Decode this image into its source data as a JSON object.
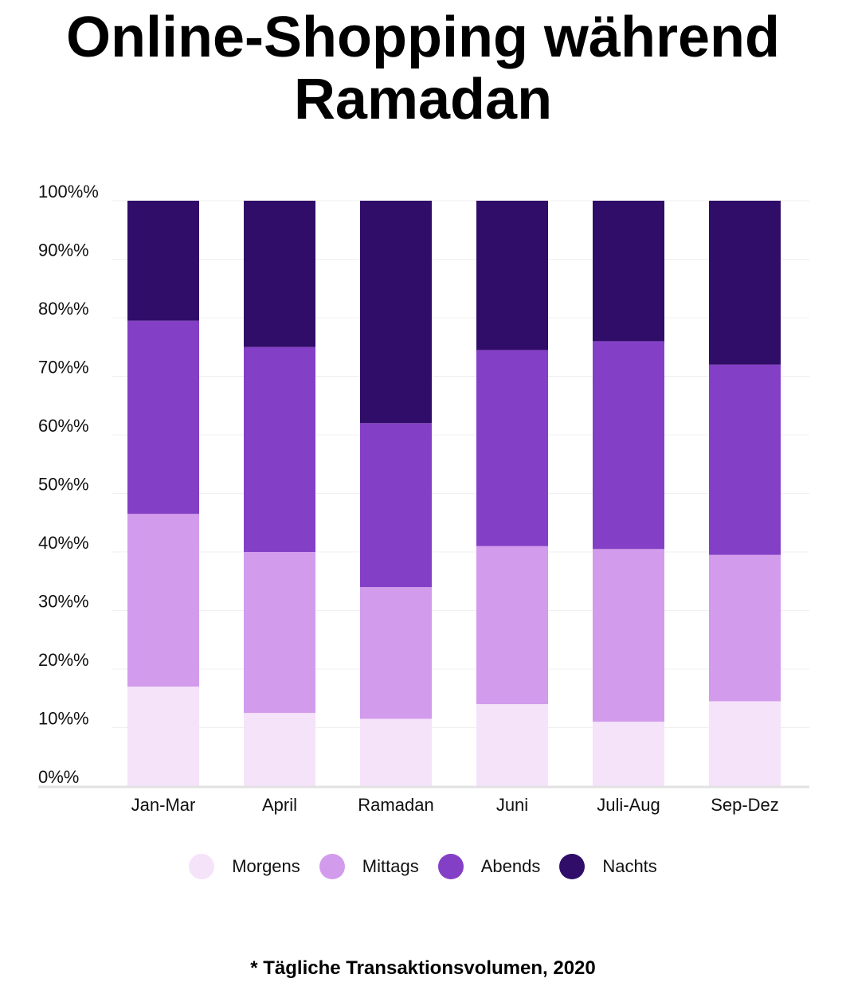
{
  "chart_data": {
    "type": "bar",
    "stacked": true,
    "title_lines": [
      "Online-Shopping während",
      "Ramadan"
    ],
    "categories": [
      "Jan-Mar",
      "April",
      "Ramadan",
      "Juni",
      "Juli-Aug",
      "Sep-Dez"
    ],
    "series": [
      {
        "name": "Morgens",
        "color": "#f5e3fa",
        "values": [
          17,
          12.5,
          11.5,
          14,
          11,
          14.5
        ]
      },
      {
        "name": "Mittags",
        "color": "#d29bec",
        "values": [
          29.5,
          27.5,
          22.5,
          27,
          29.5,
          25
        ]
      },
      {
        "name": "Abends",
        "color": "#843fc7",
        "values": [
          33,
          35,
          28,
          33.5,
          35.5,
          32.5
        ]
      },
      {
        "name": "Nachts",
        "color": "#300d69",
        "values": [
          20.5,
          25,
          38,
          25.5,
          24,
          28
        ]
      }
    ],
    "yticks": [
      "0%%",
      "10%%",
      "20%%",
      "30%%",
      "40%%",
      "50%%",
      "60%%",
      "70%%",
      "80%%",
      "90%%",
      "100%%"
    ],
    "ylim": [
      0,
      100
    ],
    "grid": true,
    "legend_position": "bottom",
    "footnote": "* Tägliche Transaktionsvolumen, 2020"
  }
}
